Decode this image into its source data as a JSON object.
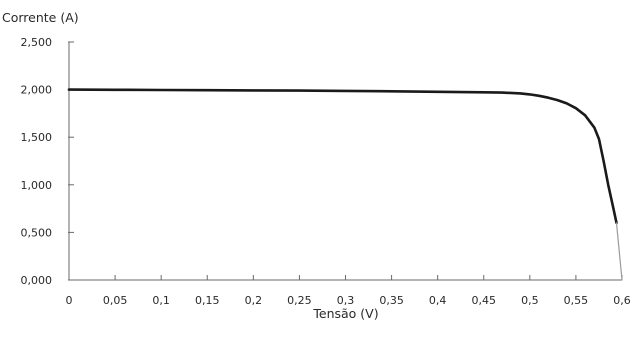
{
  "chart_data": {
    "type": "line",
    "title": "",
    "xlabel": "Tensão (V)",
    "ylabel": "Corrente (A)",
    "xlim": [
      0,
      0.6
    ],
    "ylim": [
      0,
      2.5
    ],
    "x_ticks": [
      "0",
      "0,05",
      "0,1",
      "0,15",
      "0,2",
      "0,25",
      "0,3",
      "0,35",
      "0,4",
      "0,45",
      "0,5",
      "0,55",
      "0,6"
    ],
    "y_ticks": [
      "0,000",
      "0,500",
      "1,000",
      "1,500",
      "2,000",
      "2,500"
    ],
    "grid": false,
    "legend": "none",
    "series": [
      {
        "color": "#1a1a1a",
        "x": [
          0,
          0.05,
          0.1,
          0.15,
          0.2,
          0.25,
          0.3,
          0.35,
          0.4,
          0.45,
          0.47,
          0.49,
          0.5,
          0.51,
          0.52,
          0.53,
          0.54,
          0.55,
          0.56,
          0.57,
          0.575,
          0.58,
          0.585,
          0.59,
          0.594
        ],
        "y": [
          2.0,
          1.998,
          1.996,
          1.994,
          1.992,
          1.989,
          1.986,
          1.982,
          1.977,
          1.972,
          1.969,
          1.96,
          1.95,
          1.935,
          1.915,
          1.89,
          1.855,
          1.805,
          1.73,
          1.6,
          1.48,
          1.25,
          1.0,
          0.78,
          0.6
        ]
      },
      {
        "color": "#9a9a9a",
        "x": [
          0.594,
          0.6
        ],
        "y": [
          0.6,
          0.0
        ]
      }
    ]
  }
}
